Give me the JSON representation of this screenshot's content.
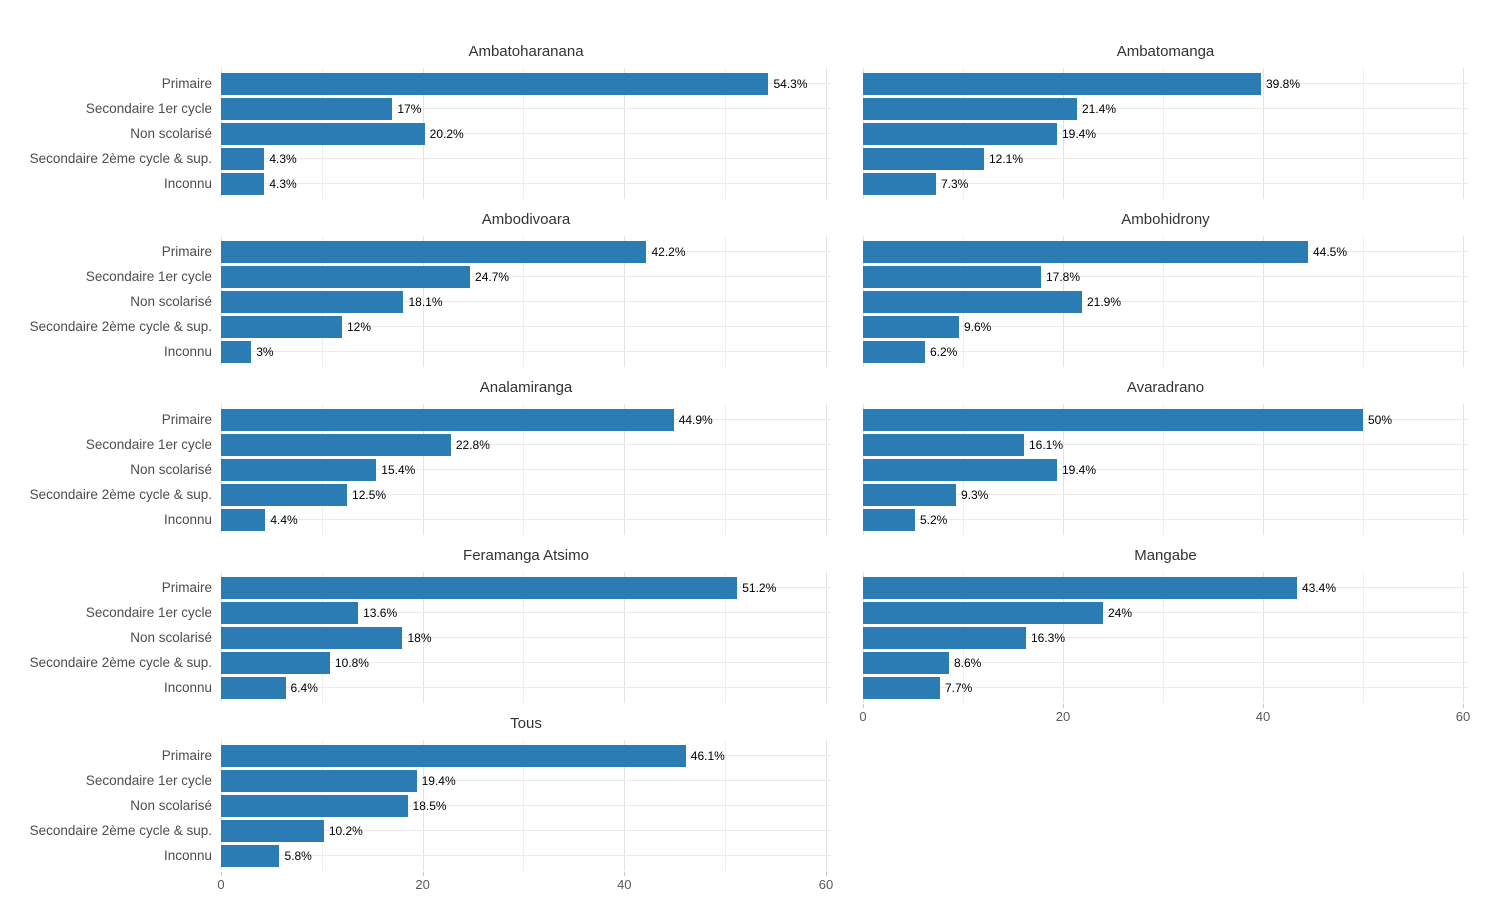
{
  "page": {
    "background": "#ffffff"
  },
  "chart_data": {
    "type": "bar",
    "orientation": "horizontal",
    "title": "",
    "xlabel": "",
    "ylabel": "",
    "value_suffix": "%",
    "categories": [
      "Primaire",
      "Secondaire 1er cycle",
      "Non scolarisé",
      "Secondaire 2ème cycle & sup.",
      "Inconnu"
    ],
    "x_ticks": [
      0,
      20,
      40,
      60
    ],
    "xlim": [
      0,
      60.5
    ],
    "grid_major": [
      0,
      20,
      40,
      60
    ],
    "grid_minor": [
      10,
      30,
      50
    ],
    "grid_on": true,
    "legend": "none",
    "bar_color": "#2b7bb4",
    "grid_color_major": "#e3e3e3",
    "grid_color_minor": "#efefef",
    "facets": [
      {
        "title": "Ambatoharanana",
        "values": [
          54.3,
          17,
          20.2,
          4.3,
          4.3
        ],
        "labels": [
          "54.3%",
          "17%",
          "20.2%",
          "4.3%",
          "4.3%"
        ],
        "show_axis": false
      },
      {
        "title": "Ambatomanga",
        "values": [
          39.8,
          21.4,
          19.4,
          12.1,
          7.3
        ],
        "labels": [
          "39.8%",
          "21.4%",
          "19.4%",
          "12.1%",
          "7.3%"
        ],
        "show_axis": false
      },
      {
        "title": "Ambodivoara",
        "values": [
          42.2,
          24.7,
          18.1,
          12,
          3
        ],
        "labels": [
          "42.2%",
          "24.7%",
          "18.1%",
          "12%",
          "3%"
        ],
        "show_axis": false
      },
      {
        "title": "Ambohidrony",
        "values": [
          44.5,
          17.8,
          21.9,
          9.6,
          6.2
        ],
        "labels": [
          "44.5%",
          "17.8%",
          "21.9%",
          "9.6%",
          "6.2%"
        ],
        "show_axis": false
      },
      {
        "title": "Analamiranga",
        "values": [
          44.9,
          22.8,
          15.4,
          12.5,
          4.4
        ],
        "labels": [
          "44.9%",
          "22.8%",
          "15.4%",
          "12.5%",
          "4.4%"
        ],
        "show_axis": false
      },
      {
        "title": "Avaradrano",
        "values": [
          50,
          16.1,
          19.4,
          9.3,
          5.2
        ],
        "labels": [
          "50%",
          "16.1%",
          "19.4%",
          "9.3%",
          "5.2%"
        ],
        "show_axis": false
      },
      {
        "title": "Feramanga Atsimo",
        "values": [
          51.2,
          13.6,
          18,
          10.8,
          6.4
        ],
        "labels": [
          "51.2%",
          "13.6%",
          "18%",
          "10.8%",
          "6.4%"
        ],
        "show_axis": false
      },
      {
        "title": "Mangabe",
        "values": [
          43.4,
          24,
          16.3,
          8.6,
          7.7
        ],
        "labels": [
          "43.4%",
          "24%",
          "16.3%",
          "8.6%",
          "7.7%"
        ],
        "show_axis": true
      },
      {
        "title": "Tous",
        "values": [
          46.1,
          19.4,
          18.5,
          10.2,
          5.8
        ],
        "labels": [
          "46.1%",
          "19.4%",
          "18.5%",
          "10.2%",
          "5.8%"
        ],
        "show_axis": true
      }
    ]
  }
}
